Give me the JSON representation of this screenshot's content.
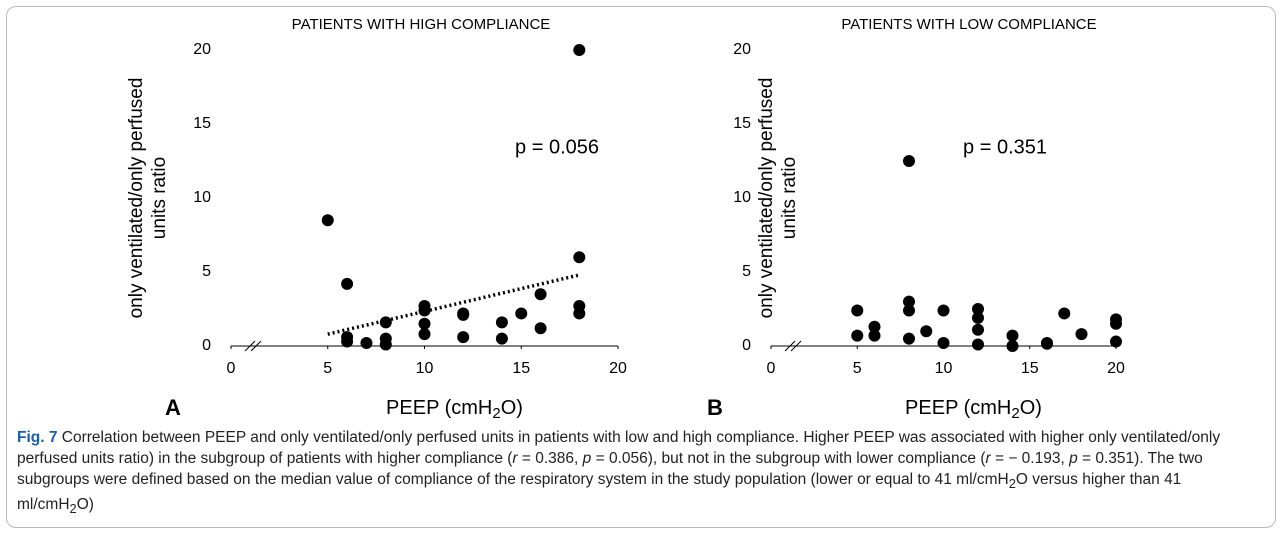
{
  "chart_data": [
    {
      "type": "scatter",
      "title": "PATIENTS WITH HIGH COMPLIANCE",
      "panel": "A",
      "ylabel": [
        "only ventilated/only perfused",
        "units ratio"
      ],
      "xlabel": [
        "PEEP (cmH",
        "2",
        "O)"
      ],
      "annotation": "p = 0.056",
      "color": "#000000",
      "x": [
        5,
        6,
        6,
        6,
        7,
        8,
        8,
        8,
        10,
        10,
        10,
        10,
        12,
        12,
        12,
        14,
        14,
        15,
        16,
        16,
        18,
        18,
        18,
        18
      ],
      "values": [
        8.5,
        4.2,
        0.6,
        0.3,
        0.2,
        1.6,
        0.5,
        0.1,
        2.7,
        2.4,
        1.5,
        0.8,
        2.2,
        2.1,
        0.6,
        1.6,
        0.5,
        2.2,
        3.5,
        1.2,
        20,
        6,
        2.7,
        2.2
      ],
      "trendline": {
        "x": [
          5,
          18
        ],
        "y": [
          0.8,
          4.8
        ]
      },
      "xlim": [
        0,
        20
      ],
      "xticks": [
        0,
        5,
        10,
        15,
        20
      ],
      "ylim": [
        0,
        20
      ],
      "yticks": [
        0,
        5,
        10,
        15,
        20
      ]
    },
    {
      "type": "scatter",
      "title": "PATIENTS WITH LOW COMPLIANCE",
      "panel": "B",
      "ylabel": [
        "only ventilated/only perfused",
        "units ratio"
      ],
      "xlabel": [
        "PEEP (cmH",
        "2",
        "O)"
      ],
      "annotation": "p = 0.351",
      "color": "#000000",
      "x": [
        5,
        5,
        6,
        6,
        8,
        8,
        8,
        8,
        9,
        10,
        10,
        12,
        12,
        12,
        12,
        14,
        14,
        16,
        16,
        17,
        18,
        20,
        20,
        20
      ],
      "values": [
        2.4,
        0.7,
        1.3,
        0.7,
        12.5,
        3.0,
        2.4,
        0.5,
        1.0,
        2.4,
        0.2,
        2.5,
        1.9,
        1.1,
        0.1,
        0.7,
        0.0,
        0.2,
        0.15,
        2.2,
        0.8,
        1.8,
        1.5,
        0.3
      ],
      "xlim": [
        0,
        20
      ],
      "xticks": [
        0,
        5,
        10,
        15,
        20
      ],
      "ylim": [
        0,
        20
      ],
      "yticks": [
        0,
        5,
        10,
        15,
        20
      ]
    }
  ],
  "caption": {
    "label": "Fig. 7",
    "parts": [
      " Correlation between PEEP and only ventilated/only perfused units in patients with low and high compliance. Higher PEEP was associated with higher only ventilated/only perfused units ratio) in the subgroup of patients with higher compliance (",
      "r",
      " = 0.386, ",
      "p",
      " = 0.056), but not in the subgroup with lower compliance (",
      "r",
      " = − 0.193, ",
      "p",
      " = 0.351). The two subgroups were defined based on the median value of compliance of the respiratory system in the study population (lower or equal to 41 ml/cmH",
      "2",
      "O versus higher than 41 ml/cmH",
      "2",
      "O)"
    ]
  }
}
